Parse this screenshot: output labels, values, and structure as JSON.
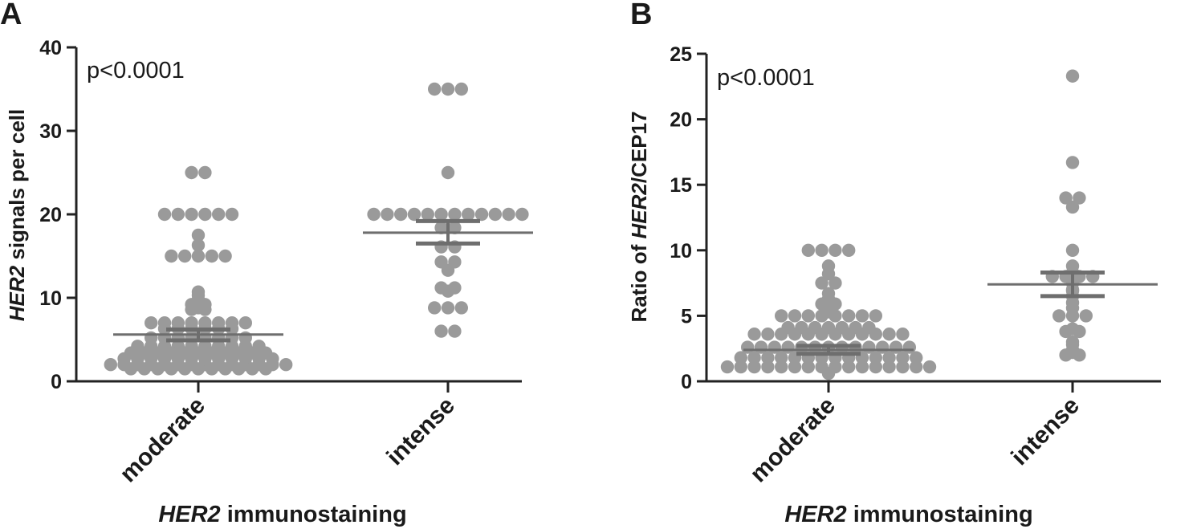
{
  "chart_data": [
    {
      "panel": "A",
      "type": "scatter",
      "annotation": "p<0.0001",
      "ylabel_italic": "HER2",
      "ylabel_rest": " signals per cell",
      "xlabel_italic": "HER2",
      "xlabel_rest": " immunostaining",
      "ylim": [
        0,
        40
      ],
      "yticks": [
        0,
        10,
        20,
        30,
        40
      ],
      "categories": [
        "moderate",
        "intense"
      ],
      "groups": [
        {
          "name": "moderate",
          "mean": 5.6,
          "sem_low": 4.9,
          "sem_high": 6.2,
          "values": [
            25,
            25,
            20,
            20,
            20,
            20,
            20,
            20,
            17.5,
            16.3,
            15,
            15,
            15,
            15,
            15,
            10.7,
            10.3,
            9.8,
            9.2,
            9.2,
            8.8,
            8.6,
            8.6,
            7.0,
            7.0,
            7.0,
            7.0,
            7.0,
            7.0,
            7.0,
            7.0,
            6.3,
            6.3,
            6.3,
            6.3,
            6.3,
            6.3,
            5.2,
            5.2,
            5.2,
            5.2,
            5.2,
            5.2,
            5.2,
            5.2,
            4.2,
            4.2,
            4.2,
            4.2,
            4.2,
            4.2,
            4.2,
            4.2,
            4.2,
            4.2,
            3.4,
            3.4,
            3.4,
            3.4,
            3.4,
            3.4,
            3.4,
            3.4,
            3.4,
            3.4,
            3.4,
            2.7,
            2.7,
            2.7,
            2.7,
            2.7,
            2.7,
            2.7,
            2.7,
            2.7,
            2.7,
            2.7,
            2.7,
            2.0,
            2.0,
            2.0,
            2.0,
            2.0,
            2.0,
            2.0,
            2.0,
            2.0,
            2.0,
            2.0,
            2.0,
            2.0,
            2.0,
            1.5,
            1.5,
            1.5,
            1.5,
            1.5,
            1.5,
            1.5,
            1.5,
            1.5,
            1.5,
            1.5
          ]
        },
        {
          "name": "intense",
          "mean": 17.8,
          "sem_low": 16.5,
          "sem_high": 19.2,
          "values": [
            35,
            35,
            35,
            25,
            20,
            20,
            20,
            20,
            20,
            20,
            20,
            20,
            20,
            20,
            20,
            20,
            18.4,
            18.4,
            16.1,
            16.1,
            14.3,
            14.3,
            13.3,
            11.2,
            11.2,
            10.8,
            8.8,
            8.8,
            8.8,
            6.0,
            6.0
          ]
        }
      ]
    },
    {
      "panel": "B",
      "type": "scatter",
      "annotation": "p<0.0001",
      "ylabel_prefix": "Ratio of ",
      "ylabel_italic": "HER2",
      "ylabel_rest": "/CEP17",
      "xlabel_italic": "HER2",
      "xlabel_rest": " immunostaining",
      "ylim": [
        0,
        25
      ],
      "yticks": [
        0,
        5,
        10,
        15,
        20,
        25
      ],
      "categories": [
        "moderate",
        "intense"
      ],
      "groups": [
        {
          "name": "moderate",
          "mean": 2.4,
          "sem_low": 2.1,
          "sem_high": 2.7,
          "values": [
            10,
            10,
            10,
            10,
            8.8,
            8.2,
            7.5,
            7.5,
            6.7,
            6.3,
            5.9,
            5.9,
            5.6,
            5.3,
            5.0,
            5.0,
            5.0,
            5.0,
            5.0,
            5.0,
            5.0,
            5.0,
            4.1,
            4.1,
            4.1,
            4.1,
            4.1,
            4.1,
            4.1,
            3.6,
            3.6,
            3.6,
            3.6,
            3.6,
            3.6,
            3.6,
            3.6,
            3.6,
            3.6,
            3.6,
            3.6,
            2.6,
            2.6,
            2.6,
            2.6,
            2.6,
            2.6,
            2.6,
            2.6,
            2.6,
            2.6,
            2.6,
            2.6,
            2.6,
            1.8,
            1.8,
            1.8,
            1.8,
            1.8,
            1.8,
            1.8,
            1.8,
            1.8,
            1.8,
            1.8,
            1.8,
            1.8,
            1.8,
            1.1,
            1.1,
            1.1,
            1.1,
            1.1,
            1.1,
            1.1,
            1.1,
            1.1,
            1.1,
            1.1,
            1.1,
            1.1,
            1.1,
            1.1,
            1.1,
            0.6
          ]
        },
        {
          "name": "intense",
          "mean": 7.4,
          "sem_low": 6.5,
          "sem_high": 8.3,
          "values": [
            23.3,
            16.7,
            14.0,
            14.0,
            13.3,
            10.0,
            8.8,
            8.3,
            8.0,
            8.0,
            8.0,
            8.0,
            7.5,
            7.0,
            6.9,
            6.5,
            6.0,
            5.6,
            5.0,
            5.0,
            5.0,
            4.0,
            3.8,
            3.8,
            3.0,
            2.8,
            2.4,
            2.3,
            2.2,
            2.0,
            2.0
          ]
        }
      ]
    }
  ]
}
